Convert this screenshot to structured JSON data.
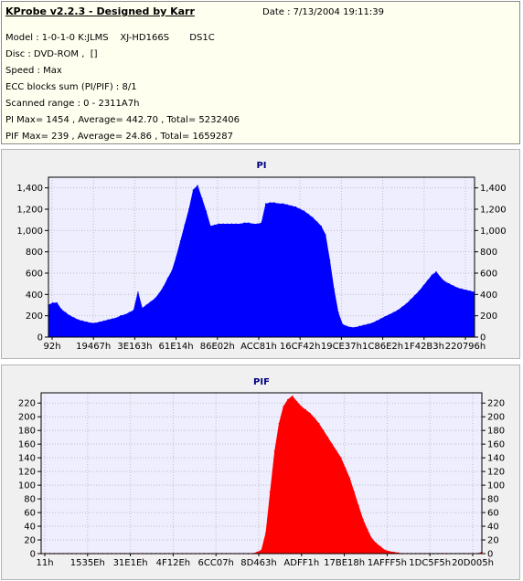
{
  "header": {
    "title": "KProbe v2.2.3 - Designed by Karr",
    "date": "Date : 7/13/2004 19:11:39",
    "lines": [
      "Model : 1-0-1-0 K:JLMS    XJ-HD166S       DS1C",
      "Disc : DVD-ROM ,  []",
      "Speed : Max",
      "ECC blocks sum (PI/PIF) : 8/1",
      "Scanned range : 0 - 2311A7h",
      "PI Max= 1454 , Average= 442.70 , Total= 5232406",
      "PIF Max= 239 , Average= 24.86 , Total= 1659287"
    ]
  },
  "chart_data": [
    {
      "type": "area",
      "title": "PI",
      "color": "#0000ff",
      "ylim": [
        0,
        1500
      ],
      "yticks": [
        0,
        200,
        400,
        600,
        800,
        1000,
        1200,
        1400
      ],
      "ytick_labels": [
        "0",
        "200",
        "400",
        "600",
        "800",
        "1,000",
        "1,200",
        "1,400"
      ],
      "xtick_labels": [
        "92h",
        "19467h",
        "3E163h",
        "61E14h",
        "86E02h",
        "ACC81h",
        "16CF42h",
        "19CE37h",
        "1C86E2h",
        "1F42B3h",
        "220796h"
      ],
      "grid": true,
      "x": [
        0,
        1,
        2,
        3,
        4,
        5,
        6,
        7,
        8,
        9,
        10,
        11,
        12,
        13,
        14,
        15,
        16,
        17,
        18,
        19,
        20,
        21,
        22,
        23,
        24,
        25,
        26,
        27,
        28,
        29,
        30,
        31,
        32,
        33,
        34,
        35,
        36,
        37,
        38,
        39,
        40,
        41,
        42,
        43,
        44,
        45,
        46,
        47,
        48,
        49,
        50,
        51,
        52,
        53,
        54,
        55,
        56,
        57,
        58,
        59,
        60,
        61,
        62,
        63,
        64,
        65,
        66,
        67,
        68,
        69,
        70,
        71,
        72,
        73,
        74,
        75,
        76,
        77,
        78,
        79,
        80,
        81,
        82,
        83,
        84,
        85,
        86,
        87,
        88,
        89,
        90,
        91,
        92,
        93,
        94,
        95,
        96,
        97,
        98,
        99,
        100
      ],
      "values": [
        300,
        320,
        320,
        260,
        230,
        200,
        180,
        160,
        150,
        140,
        130,
        130,
        140,
        150,
        160,
        170,
        180,
        200,
        210,
        230,
        250,
        420,
        270,
        300,
        330,
        360,
        410,
        470,
        550,
        620,
        750,
        900,
        1050,
        1200,
        1380,
        1420,
        1300,
        1180,
        1040,
        1050,
        1060,
        1060,
        1060,
        1060,
        1060,
        1060,
        1070,
        1070,
        1060,
        1060,
        1070,
        1250,
        1260,
        1260,
        1250,
        1250,
        1240,
        1230,
        1220,
        1200,
        1180,
        1150,
        1120,
        1080,
        1040,
        960,
        720,
        450,
        230,
        120,
        100,
        90,
        90,
        100,
        110,
        120,
        130,
        150,
        170,
        190,
        210,
        230,
        250,
        280,
        310,
        350,
        390,
        430,
        480,
        530,
        580,
        610,
        560,
        520,
        500,
        480,
        460,
        450,
        440,
        430,
        420
      ]
    },
    {
      "type": "area",
      "title": "PIF",
      "color": "#ff0000",
      "ylim": [
        0,
        235
      ],
      "yticks": [
        0,
        20,
        40,
        60,
        80,
        100,
        120,
        140,
        160,
        180,
        200,
        220
      ],
      "ytick_labels": [
        "0",
        "20",
        "40",
        "60",
        "80",
        "100",
        "120",
        "140",
        "160",
        "180",
        "200",
        "220"
      ],
      "xtick_labels": [
        "11h",
        "1535Eh",
        "31E1Eh",
        "4F12Eh",
        "6CC07h",
        "8D463h",
        "ADFF1h",
        "17BE18h",
        "1AFFF5h",
        "1DC5F5h",
        "20D005h"
      ],
      "grid": true,
      "x": [
        0,
        1,
        2,
        3,
        4,
        5,
        6,
        7,
        8,
        9,
        10,
        11,
        12,
        13,
        14,
        15,
        16,
        17,
        18,
        19,
        20,
        21,
        22,
        23,
        24,
        25,
        26,
        27,
        28,
        29,
        30,
        31,
        32,
        33,
        34,
        35,
        36,
        37,
        38,
        39,
        40,
        41,
        42,
        43,
        44,
        45,
        46,
        47,
        48,
        49,
        50,
        51,
        52,
        53,
        54,
        55,
        56,
        57,
        58,
        59,
        60,
        61,
        62,
        63,
        64,
        65,
        66,
        67,
        68,
        69,
        70,
        71,
        72,
        73,
        74,
        75,
        76,
        77,
        78,
        79,
        80,
        81,
        82,
        83,
        84,
        85,
        86,
        87,
        88,
        89,
        90,
        91,
        92,
        93,
        94,
        95,
        96,
        97,
        98,
        99,
        100
      ],
      "values": [
        0,
        0,
        0,
        0,
        0,
        0,
        0,
        0,
        0,
        0,
        0,
        0,
        0,
        0,
        0,
        0,
        0,
        0,
        0,
        0,
        0,
        0,
        0,
        0,
        0,
        0,
        0,
        0,
        0,
        0,
        0,
        0,
        0,
        0,
        0,
        0,
        0,
        0,
        0,
        0,
        0,
        0,
        0,
        0,
        0,
        0,
        0,
        0,
        0,
        2,
        5,
        30,
        90,
        150,
        190,
        215,
        225,
        230,
        222,
        215,
        210,
        205,
        198,
        190,
        180,
        170,
        160,
        150,
        140,
        125,
        110,
        90,
        70,
        50,
        35,
        22,
        15,
        10,
        5,
        3,
        2,
        1,
        0,
        0,
        0,
        0,
        0,
        0,
        0,
        0,
        0,
        0,
        0,
        0,
        0,
        0,
        0,
        0,
        0,
        0,
        2
      ]
    }
  ]
}
